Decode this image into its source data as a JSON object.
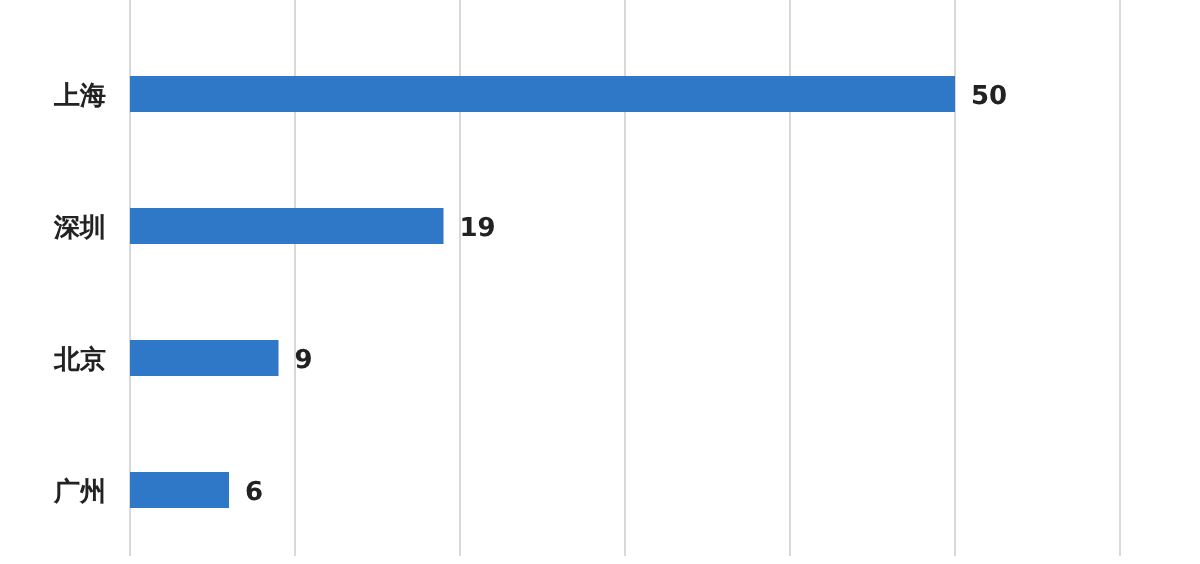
{
  "chart_data": {
    "type": "bar",
    "orientation": "horizontal",
    "categories": [
      "上海",
      "深圳",
      "北京",
      "广州"
    ],
    "values": [
      50,
      19,
      9,
      6
    ],
    "color": "#2f78c8",
    "data_labels": true,
    "grid": "x",
    "tick_labels": "y",
    "xlim": [
      0,
      60
    ],
    "xticks": [
      {
        "value": 0,
        "label": null
      },
      {
        "value": 10,
        "label": null
      },
      {
        "value": 20,
        "label": null
      },
      {
        "value": 30,
        "label": null
      },
      {
        "value": 40,
        "label": null
      },
      {
        "value": 50,
        "label": null
      },
      {
        "value": 60,
        "label": null
      }
    ]
  }
}
